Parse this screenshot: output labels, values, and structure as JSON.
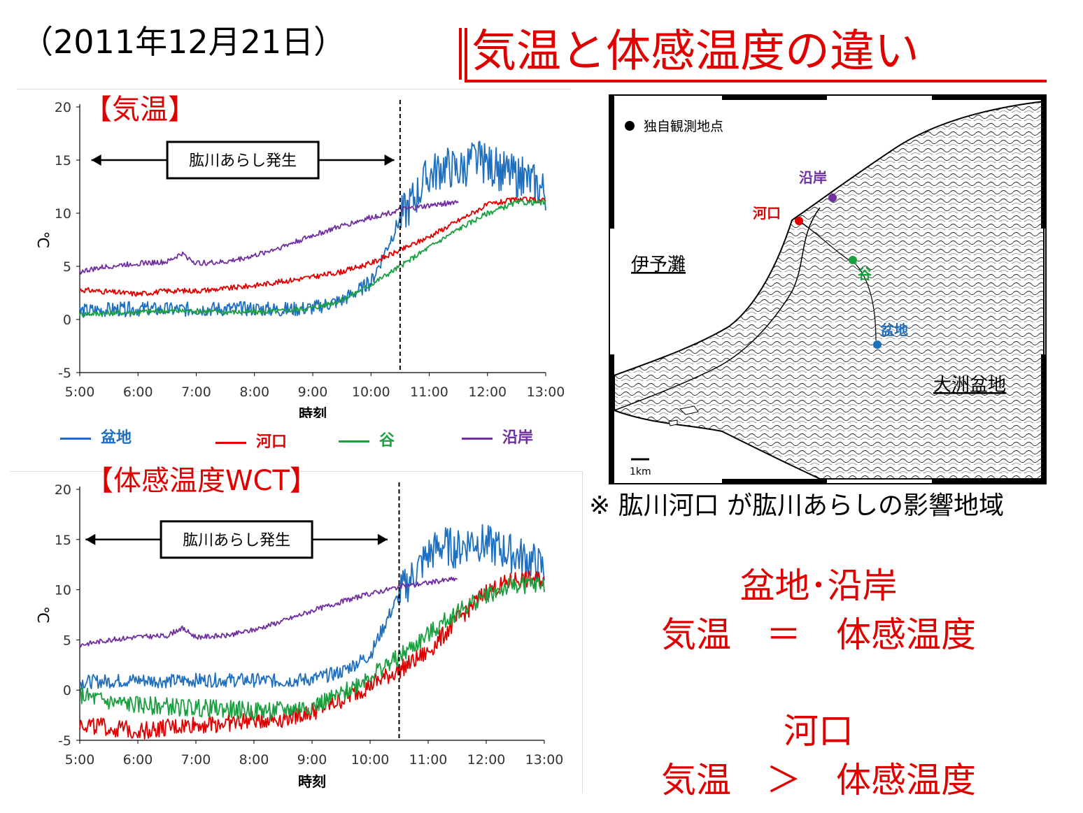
{
  "header": {
    "date": "（2011年12月21日）",
    "title": "気温と体感温度の違い"
  },
  "panels": {
    "top_label": "【気温】",
    "bottom_label": "【体感温度WCT】",
    "event_label": "肱川あらし発生"
  },
  "legend": {
    "items": [
      {
        "label": "盆地",
        "color": "#1f6fbf"
      },
      {
        "label": "河口",
        "color": "#e00000"
      },
      {
        "label": "谷",
        "color": "#1aa040"
      },
      {
        "label": "沿岸",
        "color": "#7030a0"
      }
    ]
  },
  "map": {
    "legend_label": "独自観測地点",
    "scale_label": "1km",
    "sea_label": "伊予灘",
    "basin_label": "大洲盆地",
    "points": [
      {
        "label": "沿岸",
        "color": "#7030a0"
      },
      {
        "label": "河口",
        "color": "#e00000"
      },
      {
        "label": "谷",
        "color": "#1aa040"
      },
      {
        "label": "盆地",
        "color": "#1f6fbf"
      }
    ],
    "caption": "※ 肱川河口 が肱川あらしの影響地域"
  },
  "summary": {
    "group1_title": "盆地･沿岸",
    "group1_relation": "気温　＝　体感温度",
    "group2_title": "河口",
    "group2_relation": "気温　＞　体感温度"
  },
  "chart_data": [
    {
      "type": "line",
      "title": "【気温】",
      "xlabel": "時刻",
      "ylabel": "℃",
      "x_ticks": [
        "5:00",
        "6:00",
        "7:00",
        "8:00",
        "9:00",
        "10:00",
        "11:00",
        "12:00",
        "13:00"
      ],
      "y_ticks": [
        -5,
        0,
        5,
        10,
        15,
        20
      ],
      "ylim": [
        -5,
        20
      ],
      "xlim_hours": [
        5,
        13
      ],
      "event_marker_hour": 10.5,
      "event_arrow_hours": [
        5.2,
        10.4
      ],
      "annotation": "肱川あらし発生",
      "series": [
        {
          "name": "盆地",
          "color": "#1f6fbf",
          "x": [
            5,
            5.5,
            6,
            6.5,
            7,
            7.5,
            8,
            8.5,
            9,
            9.5,
            10,
            10.25,
            10.5,
            10.75,
            11,
            11.25,
            11.5,
            11.75,
            12,
            12.25,
            12.5,
            12.75,
            13
          ],
          "y": [
            0.8,
            0.9,
            1.0,
            0.9,
            1.0,
            1.0,
            1.0,
            0.9,
            1.1,
            1.8,
            3.5,
            6.5,
            9.5,
            11.5,
            13.5,
            14.5,
            14.0,
            15.0,
            14.5,
            14.0,
            13.5,
            13.0,
            12.0
          ]
        },
        {
          "name": "河口",
          "color": "#e00000",
          "x": [
            5,
            5.5,
            6,
            6.5,
            7,
            7.5,
            8,
            8.5,
            9,
            9.5,
            10,
            10.5,
            11,
            11.5,
            12,
            12.5,
            13
          ],
          "y": [
            2.8,
            2.6,
            2.4,
            2.7,
            2.7,
            2.9,
            3.2,
            3.6,
            4.0,
            4.5,
            5.3,
            6.5,
            7.8,
            9.3,
            10.8,
            11.3,
            11.2
          ]
        },
        {
          "name": "谷",
          "color": "#1aa040",
          "x": [
            5,
            5.5,
            6,
            6.5,
            7,
            7.5,
            8,
            8.5,
            9,
            9.5,
            10,
            10.5,
            11,
            11.5,
            12,
            12.5,
            13
          ],
          "y": [
            0.5,
            0.6,
            0.7,
            0.8,
            0.8,
            0.7,
            0.7,
            0.8,
            1.1,
            1.8,
            3.3,
            5.0,
            6.8,
            8.5,
            10.0,
            11.0,
            11.0
          ]
        },
        {
          "name": "沿岸",
          "color": "#7030a0",
          "x": [
            5,
            5.5,
            6,
            6.5,
            6.75,
            7,
            7.5,
            8,
            8.5,
            9,
            9.5,
            10,
            10.5,
            11,
            11.5
          ],
          "y": [
            4.5,
            5.0,
            5.3,
            5.4,
            6.2,
            5.3,
            5.4,
            6.0,
            6.9,
            7.9,
            8.8,
            9.6,
            10.3,
            10.7,
            11.1
          ]
        }
      ]
    },
    {
      "type": "line",
      "title": "【体感温度WCT】",
      "xlabel": "時刻",
      "ylabel": "℃",
      "x_ticks": [
        "5:00",
        "6:00",
        "7:00",
        "8:00",
        "9:00",
        "10:00",
        "11:00",
        "12:00",
        "13:00"
      ],
      "y_ticks": [
        -5,
        0,
        5,
        10,
        15,
        20
      ],
      "ylim": [
        -5,
        20
      ],
      "xlim_hours": [
        5,
        13
      ],
      "event_marker_hour": 10.5,
      "event_arrow_hours": [
        5.1,
        10.3
      ],
      "annotation": "肱川あらし発生",
      "series": [
        {
          "name": "盆地",
          "color": "#1f6fbf",
          "x": [
            5,
            5.5,
            6,
            6.5,
            7,
            7.5,
            8,
            8.5,
            9,
            9.5,
            10,
            10.25,
            10.5,
            10.75,
            11,
            11.25,
            11.5,
            11.75,
            12,
            12.25,
            12.5,
            12.75,
            13
          ],
          "y": [
            0.8,
            0.9,
            1.0,
            0.9,
            1.0,
            1.0,
            1.0,
            0.9,
            1.1,
            1.8,
            3.5,
            6.5,
            9.5,
            11.5,
            13.5,
            14.5,
            14.0,
            15.0,
            14.5,
            14.0,
            13.5,
            13.0,
            12.0
          ]
        },
        {
          "name": "河口",
          "color": "#e00000",
          "x": [
            5,
            5.5,
            6,
            6.5,
            7,
            7.5,
            8,
            8.5,
            9,
            9.5,
            10,
            10.5,
            11,
            11.5,
            12,
            12.5,
            13
          ],
          "y": [
            -3.3,
            -3.8,
            -4.0,
            -3.8,
            -3.4,
            -3.3,
            -3.0,
            -2.8,
            -2.2,
            -1.0,
            0.5,
            2.0,
            3.8,
            7.0,
            9.8,
            11.0,
            11.0
          ]
        },
        {
          "name": "谷",
          "color": "#1aa040",
          "x": [
            5,
            5.5,
            6,
            6.5,
            7,
            7.5,
            8,
            8.5,
            9,
            9.5,
            10,
            10.5,
            11,
            11.5,
            12,
            12.5,
            13
          ],
          "y": [
            -0.5,
            -1.2,
            -1.5,
            -1.6,
            -1.8,
            -1.9,
            -2.0,
            -2.0,
            -1.6,
            -0.5,
            1.5,
            3.3,
            5.5,
            7.8,
            9.5,
            10.5,
            10.5
          ]
        },
        {
          "name": "沿岸",
          "color": "#7030a0",
          "x": [
            5,
            5.5,
            6,
            6.5,
            6.75,
            7,
            7.5,
            8,
            8.5,
            9,
            9.5,
            10,
            10.5,
            11,
            11.5
          ],
          "y": [
            4.5,
            5.0,
            5.3,
            5.4,
            6.2,
            5.3,
            5.4,
            6.0,
            6.9,
            7.9,
            8.8,
            9.6,
            10.3,
            10.7,
            11.1
          ]
        }
      ]
    }
  ]
}
